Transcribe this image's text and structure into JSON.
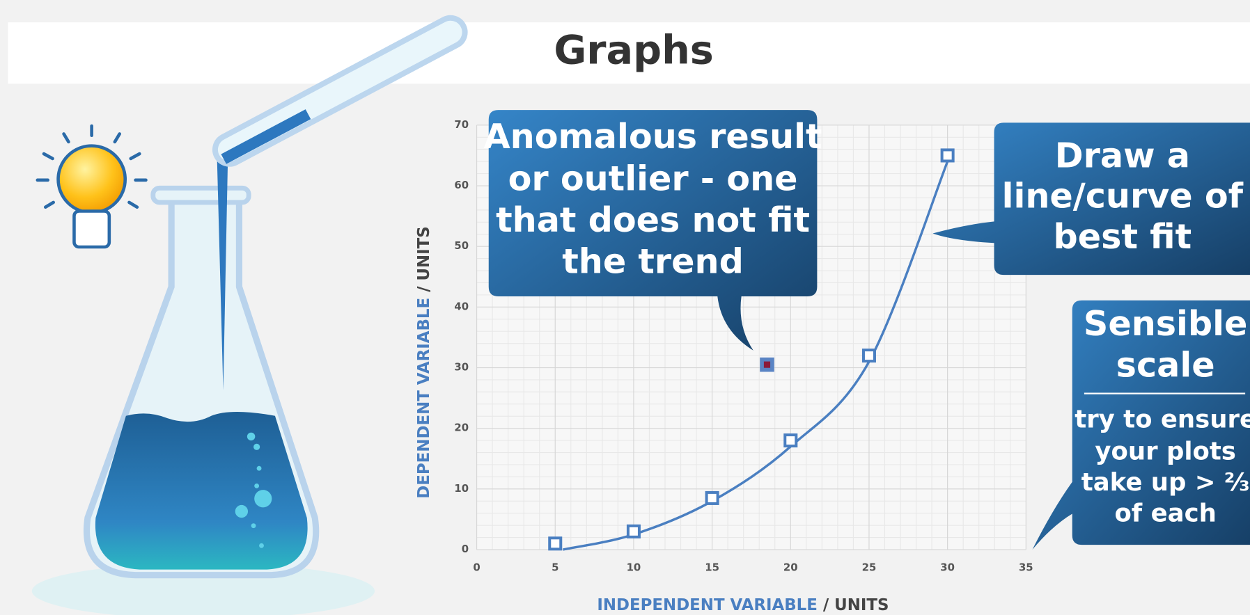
{
  "title": "Graphs",
  "chart_data": {
    "type": "scatter",
    "x_label": {
      "text": "INDEPENDENT VARIABLE",
      "unit": "/ UNITS"
    },
    "y_label": {
      "text": "DEPENDENT VARIABLE",
      "unit": "/ UNITS"
    },
    "series": [
      {
        "x": [
          5,
          10,
          15,
          20,
          25,
          30
        ],
        "values": [
          1,
          3,
          8.5,
          18,
          32,
          65
        ],
        "color": "#4a7fc1"
      },
      {
        "x": [
          18.5
        ],
        "values": [
          30.5
        ],
        "color": "#8b1a3a"
      }
    ],
    "fit": {
      "x": [
        5.5,
        10,
        15,
        20,
        25,
        30
      ],
      "values": [
        0,
        2.5,
        8,
        17,
        31,
        64
      ],
      "color": "#4a7fc1"
    },
    "xlim": [
      0,
      35
    ],
    "ylim": [
      0,
      70
    ],
    "xticks": [
      0,
      5,
      10,
      15,
      20,
      25,
      30,
      35
    ],
    "yticks": [
      0,
      10,
      20,
      30,
      40,
      50,
      60,
      70
    ],
    "grid": true
  },
  "callouts": [
    {
      "lines": [
        "Anomalous result",
        "or outlier - one",
        "that does not fit",
        "the trend"
      ]
    },
    {
      "lines": [
        "Draw a",
        "line/curve of",
        "best fit"
      ]
    },
    {
      "title": [
        "Sensible",
        "scale"
      ],
      "body": [
        "try to ensure",
        "your plots",
        "take up > ⅔",
        "of each"
      ]
    }
  ]
}
